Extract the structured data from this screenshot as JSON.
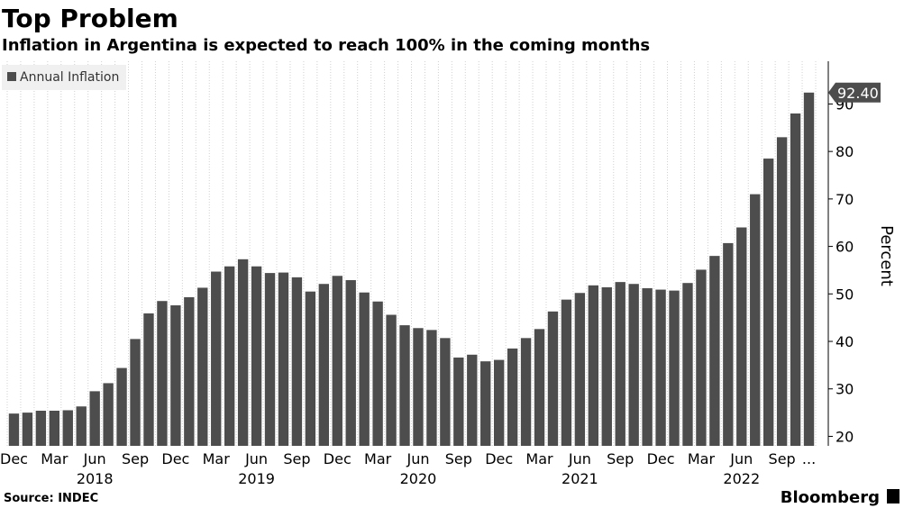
{
  "chart_data": {
    "type": "bar",
    "title": "Top Problem",
    "subtitle": "Inflation in Argentina is expected to reach 100% in the coming months",
    "y_label": "Percent",
    "source": "Source: INDEC",
    "brand": "Bloomberg",
    "categories": [
      "Dec",
      null,
      null,
      "Mar",
      null,
      null,
      "Jun",
      null,
      null,
      "Sep",
      null,
      null,
      "Dec",
      null,
      null,
      "Mar",
      null,
      null,
      "Jun",
      null,
      null,
      "Sep",
      null,
      null,
      "Dec",
      null,
      null,
      "Mar",
      null,
      null,
      "Jun",
      null,
      null,
      "Sep",
      null,
      null,
      "Dec",
      null,
      null,
      "Mar",
      null,
      null,
      "Jun",
      null,
      null,
      "Sep",
      null,
      null,
      "Dec",
      null,
      null,
      "Mar",
      null,
      null,
      "Jun",
      null,
      null,
      "Sep",
      null,
      "..."
    ],
    "year_labels": [
      "2018",
      "2019",
      "2020",
      "2021",
      "2022"
    ],
    "series": [
      {
        "name": "Annual Inflation",
        "color": "#4d4d4d",
        "values": [
          24.8,
          25.0,
          25.4,
          25.4,
          25.5,
          26.3,
          29.5,
          31.2,
          34.4,
          40.5,
          45.9,
          48.5,
          47.6,
          49.3,
          51.3,
          54.7,
          55.8,
          57.3,
          55.8,
          54.4,
          54.5,
          53.5,
          50.5,
          52.1,
          53.8,
          52.9,
          50.3,
          48.4,
          45.6,
          43.4,
          42.8,
          42.4,
          40.7,
          36.6,
          37.2,
          35.8,
          36.1,
          38.5,
          40.7,
          42.6,
          46.3,
          48.8,
          50.2,
          51.8,
          51.4,
          52.5,
          52.1,
          51.2,
          50.9,
          50.7,
          52.3,
          55.1,
          58.0,
          60.7,
          64.0,
          71.0,
          78.5,
          83.0,
          88.0,
          92.4
        ],
        "value_labels": [
          null,
          null,
          null,
          null,
          null,
          null,
          null,
          null,
          null,
          null,
          null,
          null,
          null,
          null,
          null,
          null,
          null,
          null,
          null,
          null,
          null,
          null,
          null,
          null,
          null,
          null,
          null,
          null,
          null,
          null,
          null,
          null,
          null,
          null,
          null,
          null,
          null,
          null,
          null,
          null,
          null,
          null,
          null,
          null,
          null,
          null,
          null,
          null,
          null,
          null,
          null,
          null,
          null,
          null,
          null,
          null,
          null,
          null,
          null,
          "92.40"
        ]
      }
    ],
    "ylim": [
      18,
      99
    ],
    "yticks": [
      20,
      30,
      40,
      50,
      60,
      70,
      80,
      90
    ],
    "grid": true
  }
}
